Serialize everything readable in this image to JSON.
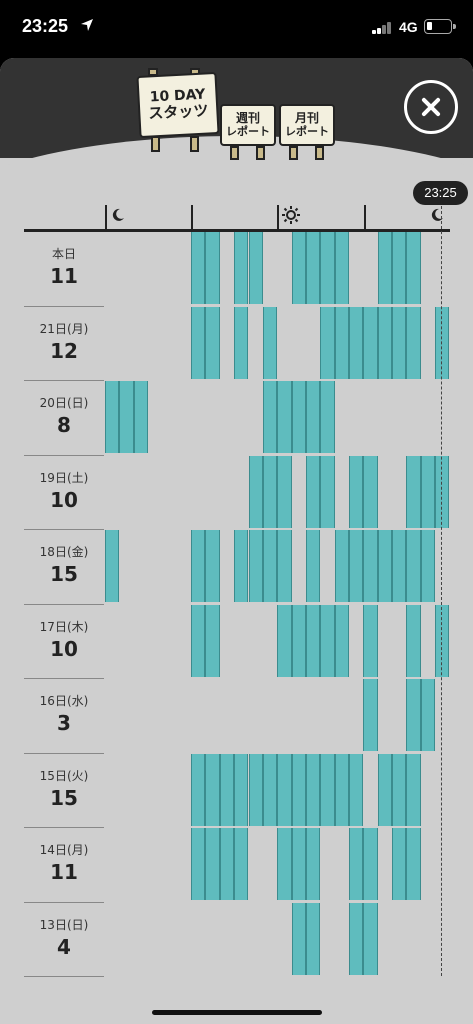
{
  "status_bar": {
    "time": "23:25",
    "network": "4G"
  },
  "header": {
    "tabs": [
      {
        "line1": "10 DAY",
        "line2": "スタッツ",
        "active": true
      },
      {
        "line1": "週刊",
        "line2": "レポート",
        "active": false
      },
      {
        "line1": "月刊",
        "line2": "レポート",
        "active": false
      }
    ]
  },
  "timeline": {
    "current_time": "23:25",
    "axis_icons": [
      "moon-icon",
      "sun-icon",
      "moon-icon"
    ]
  },
  "days": [
    {
      "date": "本日",
      "count": "11",
      "slots": [
        6,
        7,
        9,
        10,
        13,
        14,
        15,
        16,
        19,
        20,
        21
      ]
    },
    {
      "date": "21日(月)",
      "count": "12",
      "slots": [
        6,
        7,
        9,
        11,
        15,
        16,
        17,
        18,
        19,
        20,
        21,
        23
      ]
    },
    {
      "date": "20日(日)",
      "count": "8",
      "slots": [
        0,
        1,
        2,
        11,
        12,
        13,
        14,
        15
      ]
    },
    {
      "date": "19日(土)",
      "count": "10",
      "slots": [
        10,
        11,
        12,
        14,
        15,
        17,
        18,
        21,
        22,
        23
      ]
    },
    {
      "date": "18日(金)",
      "count": "15",
      "slots": [
        0,
        6,
        7,
        9,
        10,
        11,
        12,
        14,
        16,
        17,
        18,
        19,
        20,
        21,
        22
      ]
    },
    {
      "date": "17日(木)",
      "count": "10",
      "slots": [
        6,
        7,
        12,
        13,
        14,
        15,
        16,
        18,
        21,
        23
      ]
    },
    {
      "date": "16日(水)",
      "count": "3",
      "slots": [
        18,
        21,
        22
      ]
    },
    {
      "date": "15日(火)",
      "count": "15",
      "slots": [
        6,
        7,
        8,
        9,
        10,
        11,
        12,
        13,
        14,
        15,
        16,
        17,
        19,
        20,
        21
      ]
    },
    {
      "date": "14日(月)",
      "count": "11",
      "slots": [
        6,
        7,
        8,
        9,
        12,
        13,
        14,
        17,
        18,
        20,
        21
      ]
    },
    {
      "date": "13日(日)",
      "count": "4",
      "slots": [
        13,
        14,
        17,
        18
      ]
    }
  ],
  "colors": {
    "bar": "#5fbcbe",
    "background": "#cfcfcf",
    "header": "#333333"
  }
}
